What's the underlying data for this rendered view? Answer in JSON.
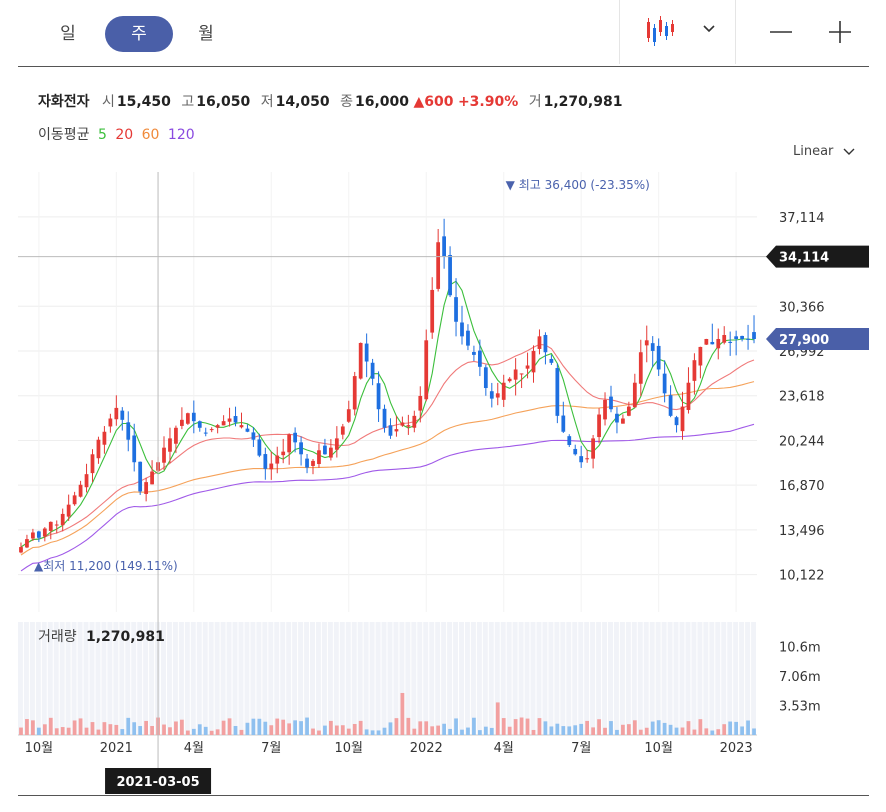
{
  "period_tabs": [
    {
      "label": "일",
      "active": false
    },
    {
      "label": "주",
      "active": true
    },
    {
      "label": "월",
      "active": false
    }
  ],
  "toolbar": {
    "chart_type_icon": "candlestick-icon",
    "dropdown_icon": "chevron-down-icon",
    "zoom_out_icon": "minus-icon",
    "zoom_in_icon": "plus-icon"
  },
  "summary": {
    "stock_name": "자화전자",
    "open_label": "시",
    "open": "15,450",
    "high_label": "고",
    "high": "16,050",
    "low_label": "저",
    "low": "14,050",
    "close_label": "종",
    "close": "16,000",
    "change": "600",
    "change_pct": "+3.90%",
    "volume_label": "거",
    "volume": "1,270,981"
  },
  "ma_legend": {
    "label": "이동평균",
    "periods": [
      "5",
      "20",
      "60",
      "120"
    ]
  },
  "scale": "Linear",
  "colors": {
    "up": "#e53935",
    "down": "#1e6fe0",
    "ma5": "#3cbf3c",
    "ma20": "#f07a7a",
    "ma60": "#f5a25a",
    "ma120": "#a05ae8",
    "vol_up": "#f2a0a0",
    "vol_down": "#8fc0ef",
    "accent": "#4a5fa8",
    "crosshair_label": "#1a1a1a"
  },
  "chart_data": {
    "type": "candlestick",
    "y_ticks": [
      "37,114",
      "30,366",
      "26,992",
      "23,618",
      "20,244",
      "16,870",
      "13,496",
      "10,122"
    ],
    "y_tick_values": [
      37114,
      30366,
      26992,
      23618,
      20244,
      16870,
      13496,
      10122
    ],
    "y_range": [
      7300,
      40500
    ],
    "volume_ticks": [
      "10.6m",
      "7.06m",
      "3.53m"
    ],
    "volume_tick_values": [
      10600000,
      7060000,
      3530000
    ],
    "x_labels": [
      "10월",
      "2021",
      "4월",
      "7월",
      "10월",
      "2022",
      "4월",
      "7월",
      "10월",
      "2023"
    ],
    "x_label_weeks": [
      3,
      16,
      29,
      42,
      55,
      68,
      81,
      94,
      107,
      120
    ],
    "crosshair": {
      "price_label": "34,114",
      "price": 34114,
      "date_label": "2021-03-05",
      "week": 23
    },
    "current_price": {
      "label": "27,900",
      "value": 27900
    },
    "max_annotation": {
      "label": "최고",
      "value": "36,400",
      "pct": "(-23.35%)",
      "week": 82
    },
    "min_annotation": {
      "label": "최저",
      "value": "11,200",
      "pct": "(149.11%)",
      "week": 0
    },
    "volume_label": "거래량",
    "volume_value": "1,270,981",
    "weeks": 124,
    "close": [
      12200,
      12800,
      13300,
      12900,
      13600,
      14100,
      13900,
      14700,
      15400,
      16100,
      16900,
      17700,
      19200,
      20300,
      20900,
      21900,
      22700,
      21800,
      20300,
      18600,
      16400,
      17100,
      17900,
      18600,
      19700,
      20400,
      21200,
      21800,
      22300,
      21700,
      21200,
      20800,
      21100,
      21400,
      21700,
      21900,
      21600,
      21400,
      20900,
      20300,
      19100,
      18100,
      18500,
      19100,
      19400,
      20700,
      20100,
      19200,
      18200,
      18700,
      19500,
      19200,
      19700,
      20400,
      21300,
      22600,
      25100,
      27600,
      26200,
      24900,
      22600,
      21200,
      20600,
      21100,
      21600,
      21400,
      22100,
      23600,
      27800,
      31600,
      35200,
      34100,
      31200,
      29200,
      28100,
      27400,
      26700,
      25800,
      24200,
      23400,
      23800,
      24600,
      24900,
      25600,
      25300,
      25900,
      27000,
      28100,
      26900,
      26100,
      22100,
      20900,
      19900,
      19200,
      18600,
      18900,
      20400,
      22200,
      23300,
      22600,
      21600,
      21900,
      22800,
      24600,
      26900,
      27800
    ],
    "ohlc_note": "Weekly closes for the full series are generated in-page from close[] by interpolation for weeks beyond the listed entries."
  }
}
